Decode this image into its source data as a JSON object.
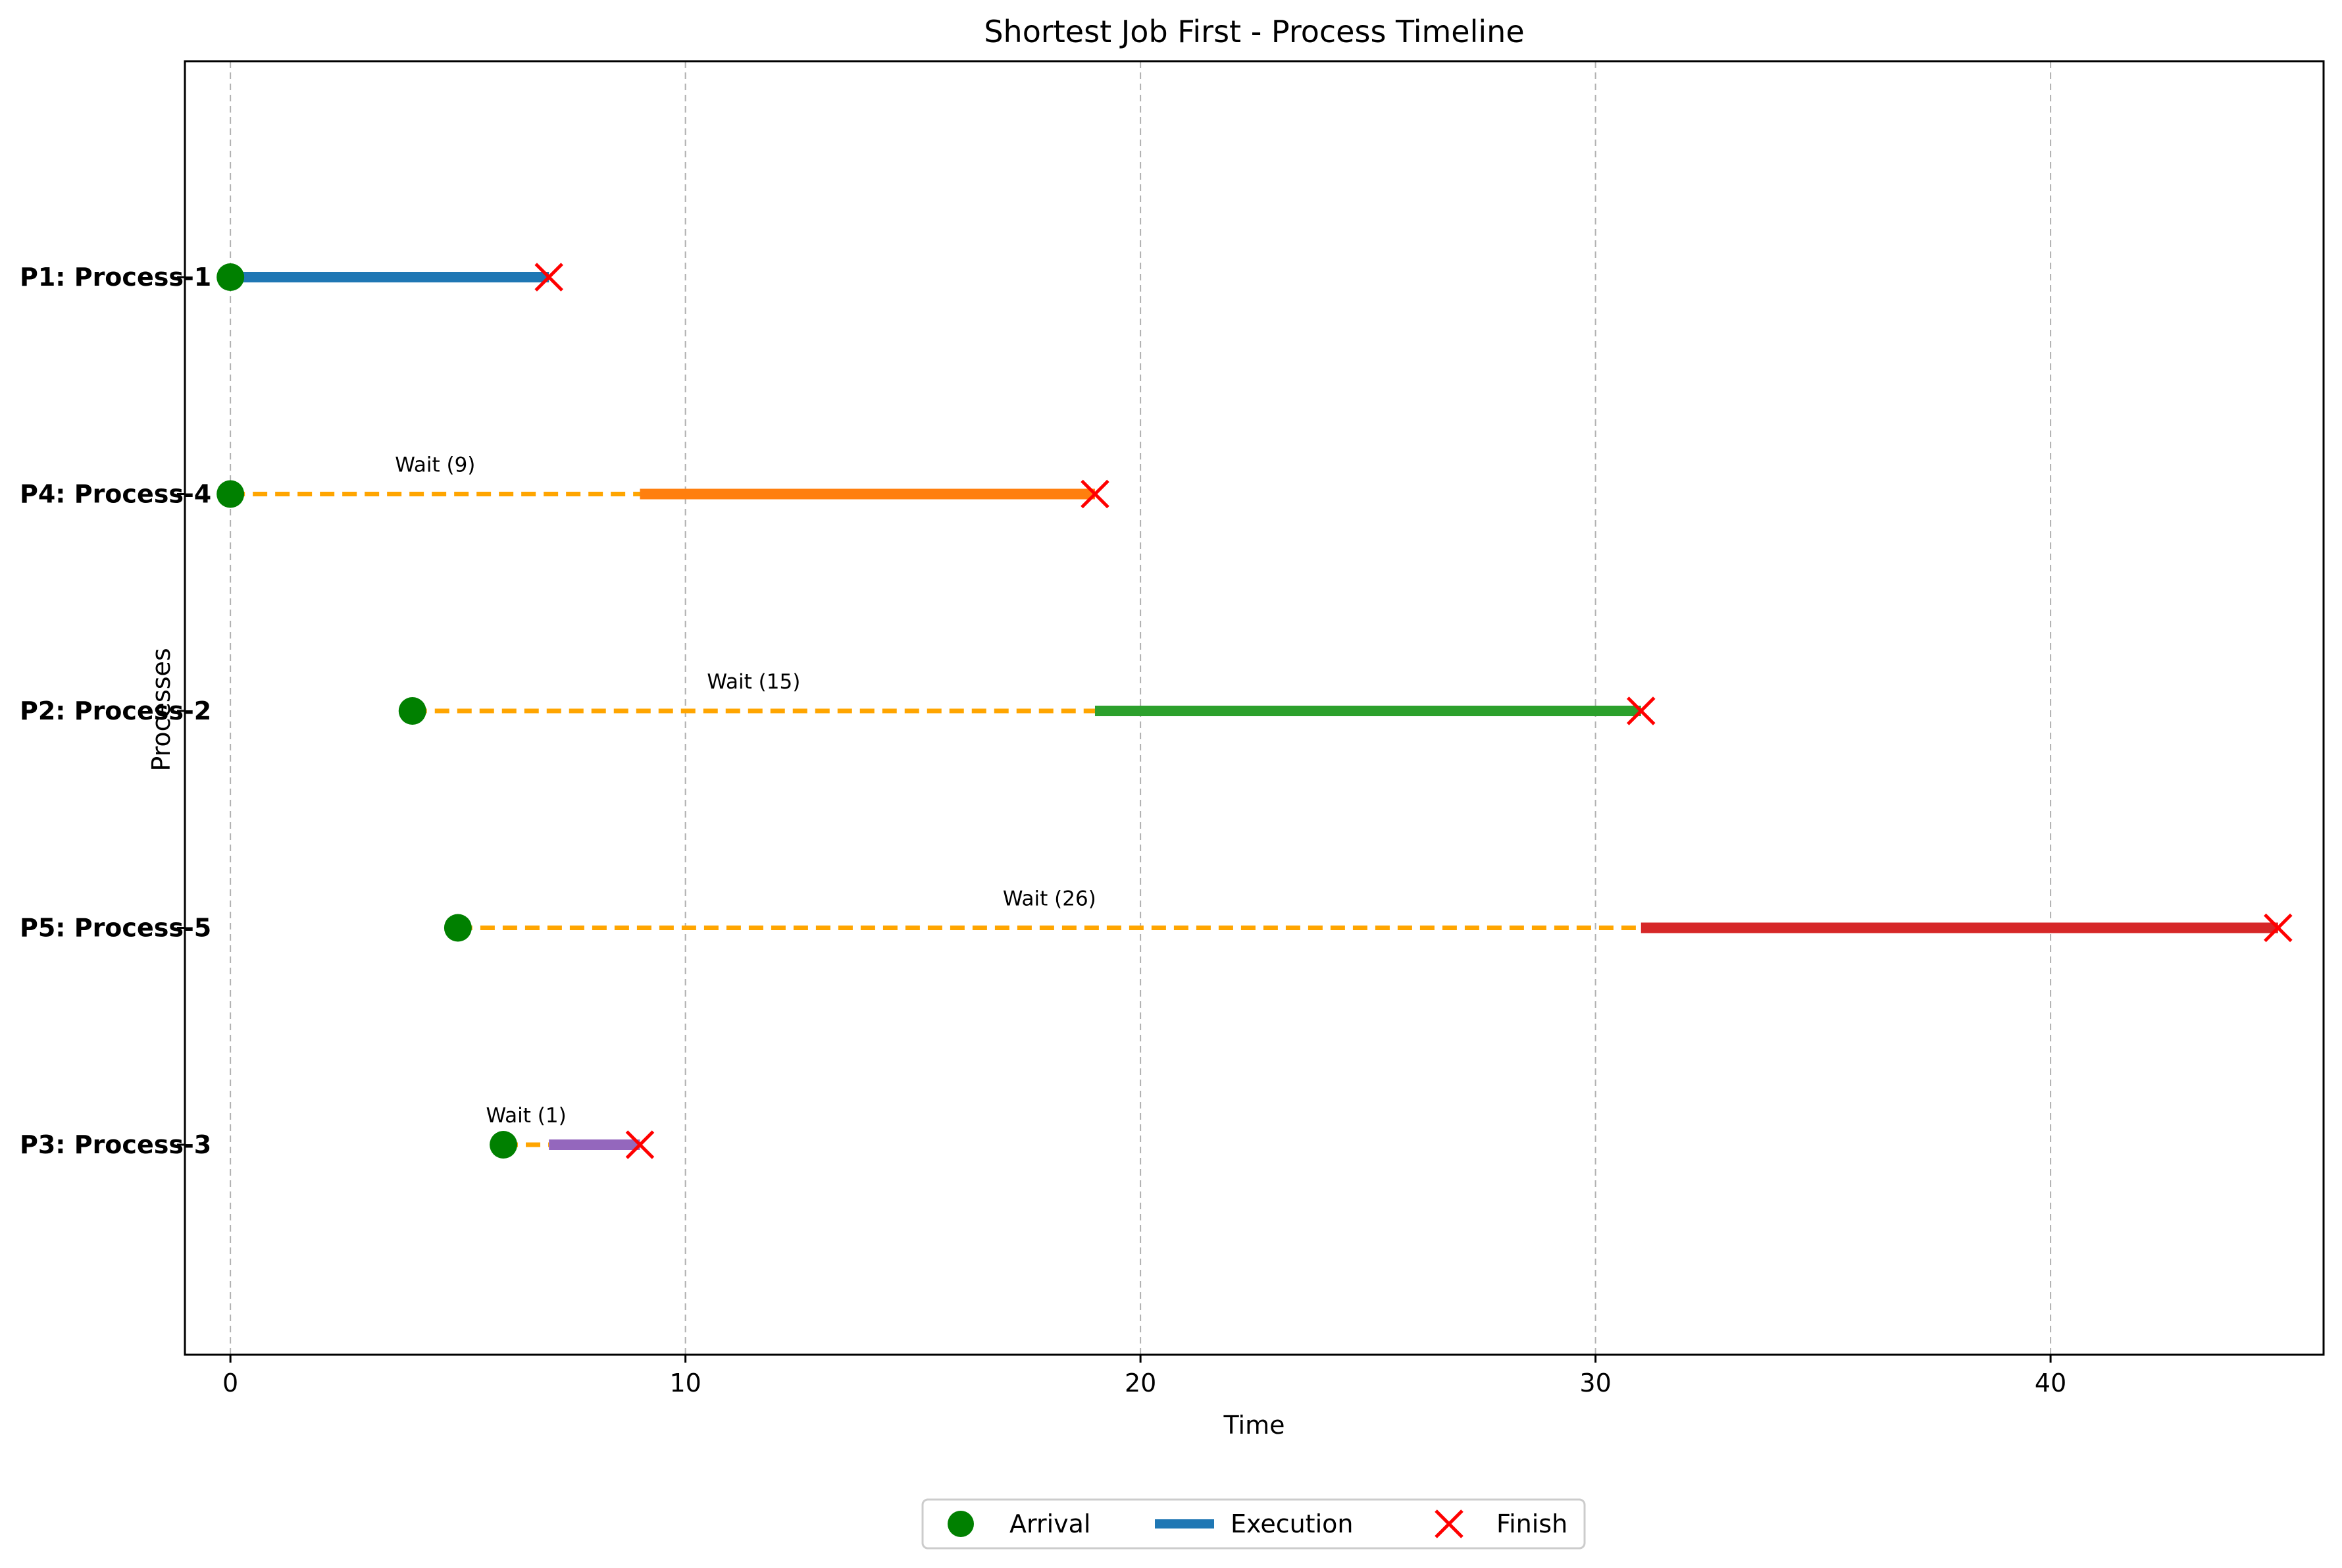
{
  "chart_data": {
    "type": "timeline",
    "title": "Shortest Job First - Process Timeline",
    "xlabel": "Time",
    "ylabel": "Processes",
    "xlim": [
      -1,
      46
    ],
    "xticks": [
      0,
      10,
      20,
      30,
      40
    ],
    "grid": "x-dashed",
    "legend_position": "bottom-center",
    "processes": [
      {
        "label": "P1: Process-1",
        "arrival": 0,
        "start": 0,
        "finish": 7,
        "wait": 0,
        "wait_label": "",
        "color": "#1f77b4"
      },
      {
        "label": "P4: Process-4",
        "arrival": 0,
        "start": 9,
        "finish": 19,
        "wait": 9,
        "wait_label": "Wait (9)",
        "color": "#ff7f0e"
      },
      {
        "label": "P2: Process-2",
        "arrival": 4,
        "start": 19,
        "finish": 31,
        "wait": 15,
        "wait_label": "Wait (15)",
        "color": "#2ca02c"
      },
      {
        "label": "P5: Process-5",
        "arrival": 5,
        "start": 31,
        "finish": 45,
        "wait": 26,
        "wait_label": "Wait (26)",
        "color": "#d62728"
      },
      {
        "label": "P3: Process-3",
        "arrival": 6,
        "start": 7,
        "finish": 9,
        "wait": 1,
        "wait_label": "Wait (1)",
        "color": "#9467bd"
      }
    ],
    "legend": [
      {
        "key": "arrival",
        "label": "Arrival"
      },
      {
        "key": "execution",
        "label": "Execution"
      },
      {
        "key": "finish",
        "label": "Finish"
      }
    ],
    "colors": {
      "arrival": "#008000",
      "wait": "#ffa500",
      "finish": "#ff0000",
      "legend_execution": "#1f77b4"
    }
  }
}
